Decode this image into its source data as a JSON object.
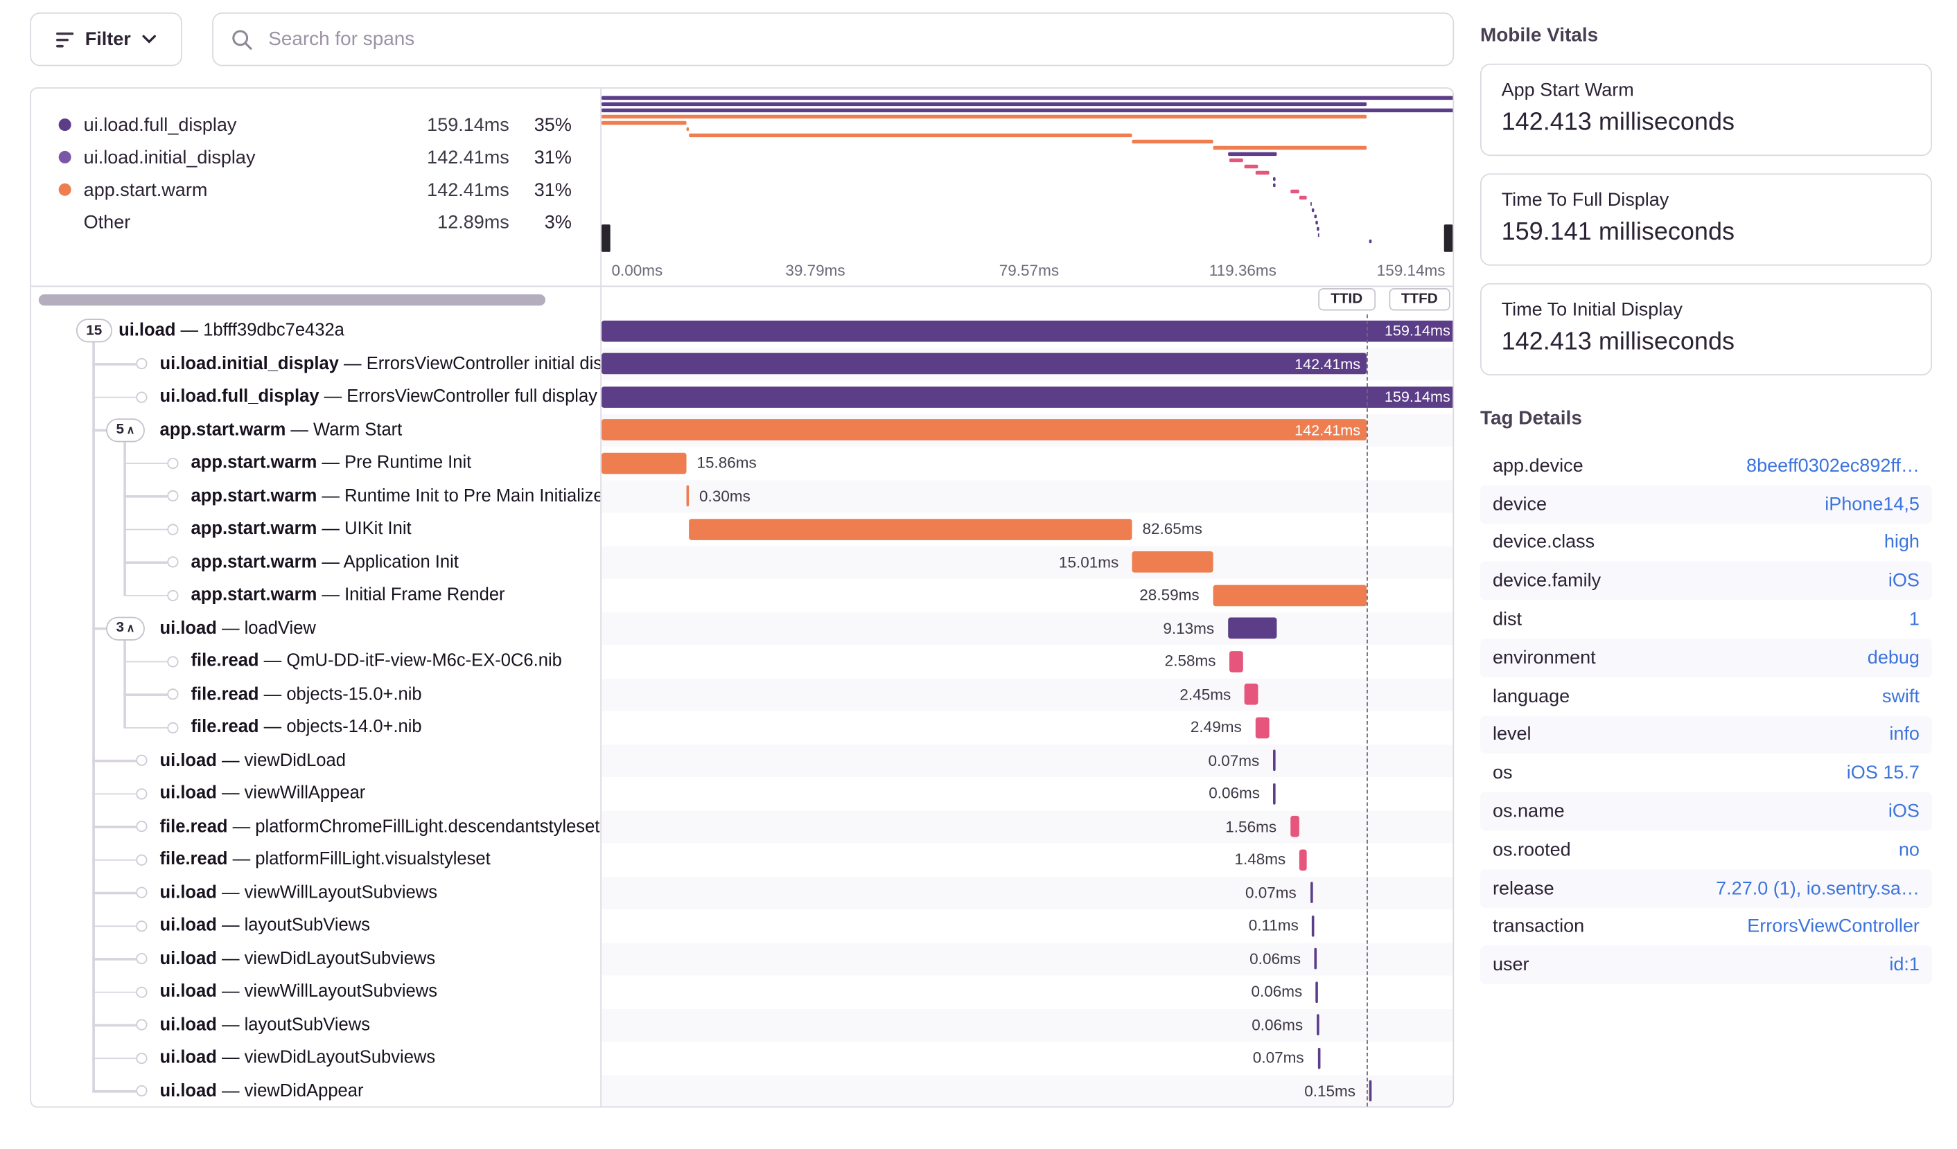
{
  "toolbar": {
    "filter_label": "Filter",
    "search_placeholder": "Search for spans"
  },
  "colors": {
    "purple": "#5b3d88",
    "purple_light": "#7a57a5",
    "orange": "#ee7d4f",
    "red": "#e5557c",
    "link": "#3c74dd"
  },
  "legend": {
    "items": [
      {
        "label": "ui.load.full_display",
        "duration": "159.14ms",
        "percent": "35%",
        "color": "purple"
      },
      {
        "label": "ui.load.initial_display",
        "duration": "142.41ms",
        "percent": "31%",
        "color": "purple_light"
      },
      {
        "label": "app.start.warm",
        "duration": "142.41ms",
        "percent": "31%",
        "color": "orange"
      },
      {
        "label": "Other",
        "duration": "12.89ms",
        "percent": "3%",
        "color": null
      }
    ]
  },
  "timeline": {
    "total_ms": 159.14,
    "ticks": [
      "0.00ms",
      "39.79ms",
      "79.57ms",
      "119.36ms",
      "159.14ms"
    ],
    "markers": [
      {
        "label": "TTID",
        "ms": 142.41
      },
      {
        "label": "TTFD",
        "ms": 159.14
      }
    ]
  },
  "spans": [
    {
      "op": "ui.load",
      "desc": "1bfff39dbc7e432a",
      "depth": 0,
      "badge": "15",
      "caret": false,
      "start": 0,
      "dur": 159.14,
      "color": "purple",
      "label": "159.14ms",
      "label_pos": "inside"
    },
    {
      "op": "ui.load.initial_display",
      "desc": "ErrorsViewController initial display",
      "depth": 1,
      "badge": null,
      "caret": false,
      "start": 0,
      "dur": 142.41,
      "color": "purple",
      "label": "142.41ms",
      "label_pos": "inside"
    },
    {
      "op": "ui.load.full_display",
      "desc": "ErrorsViewController full display",
      "depth": 1,
      "badge": null,
      "caret": false,
      "start": 0,
      "dur": 159.14,
      "color": "purple",
      "label": "159.14ms",
      "label_pos": "inside"
    },
    {
      "op": "app.start.warm",
      "desc": "Warm Start",
      "depth": 1,
      "badge": "5",
      "caret": true,
      "start": 0,
      "dur": 142.41,
      "color": "orange",
      "label": "142.41ms",
      "label_pos": "inside"
    },
    {
      "op": "app.start.warm",
      "desc": "Pre Runtime Init",
      "depth": 2,
      "badge": null,
      "caret": false,
      "start": 0,
      "dur": 15.86,
      "color": "orange",
      "label": "15.86ms",
      "label_pos": "right"
    },
    {
      "op": "app.start.warm",
      "desc": "Runtime Init to Pre Main Initializers",
      "depth": 2,
      "badge": null,
      "caret": false,
      "start": 15.86,
      "dur": 0.3,
      "color": "orange",
      "label": "0.30ms",
      "label_pos": "right"
    },
    {
      "op": "app.start.warm",
      "desc": "UIKit Init",
      "depth": 2,
      "badge": null,
      "caret": false,
      "start": 16.16,
      "dur": 82.65,
      "color": "orange",
      "label": "82.65ms",
      "label_pos": "right"
    },
    {
      "op": "app.start.warm",
      "desc": "Application Init",
      "depth": 2,
      "badge": null,
      "caret": false,
      "start": 98.81,
      "dur": 15.01,
      "color": "orange",
      "label": "15.01ms",
      "label_pos": "left"
    },
    {
      "op": "app.start.warm",
      "desc": "Initial Frame Render",
      "depth": 2,
      "badge": null,
      "caret": false,
      "start": 113.82,
      "dur": 28.59,
      "color": "orange",
      "label": "28.59ms",
      "label_pos": "left"
    },
    {
      "op": "ui.load",
      "desc": "loadView",
      "depth": 1,
      "badge": "3",
      "caret": true,
      "start": 116.6,
      "dur": 9.13,
      "color": "purple",
      "label": "9.13ms",
      "label_pos": "left"
    },
    {
      "op": "file.read",
      "desc": "QmU-DD-itF-view-M6c-EX-0C6.nib",
      "depth": 2,
      "badge": null,
      "caret": false,
      "start": 116.9,
      "dur": 2.58,
      "color": "red",
      "label": "2.58ms",
      "label_pos": "left"
    },
    {
      "op": "file.read",
      "desc": "objects-15.0+.nib",
      "depth": 2,
      "badge": null,
      "caret": false,
      "start": 119.7,
      "dur": 2.45,
      "color": "red",
      "label": "2.45ms",
      "label_pos": "left"
    },
    {
      "op": "file.read",
      "desc": "objects-14.0+.nib",
      "depth": 2,
      "badge": null,
      "caret": false,
      "start": 121.7,
      "dur": 2.49,
      "color": "red",
      "label": "2.49ms",
      "label_pos": "left"
    },
    {
      "op": "ui.load",
      "desc": "viewDidLoad",
      "depth": 1,
      "badge": null,
      "caret": false,
      "start": 125.0,
      "dur": 0.07,
      "color": "purple",
      "label": "0.07ms",
      "label_pos": "left"
    },
    {
      "op": "ui.load",
      "desc": "viewWillAppear",
      "depth": 1,
      "badge": null,
      "caret": false,
      "start": 125.1,
      "dur": 0.06,
      "color": "purple",
      "label": "0.06ms",
      "label_pos": "left"
    },
    {
      "op": "file.read",
      "desc": "platformChromeFillLight.descendantstyleset",
      "depth": 1,
      "badge": null,
      "caret": false,
      "start": 128.2,
      "dur": 1.56,
      "color": "red",
      "label": "1.56ms",
      "label_pos": "left"
    },
    {
      "op": "file.read",
      "desc": "platformFillLight.visualstyleset",
      "depth": 1,
      "badge": null,
      "caret": false,
      "start": 129.9,
      "dur": 1.48,
      "color": "red",
      "label": "1.48ms",
      "label_pos": "left"
    },
    {
      "op": "ui.load",
      "desc": "viewWillLayoutSubviews",
      "depth": 1,
      "badge": null,
      "caret": false,
      "start": 131.9,
      "dur": 0.07,
      "color": "purple",
      "label": "0.07ms",
      "label_pos": "left"
    },
    {
      "op": "ui.load",
      "desc": "layoutSubViews",
      "depth": 1,
      "badge": null,
      "caret": false,
      "start": 132.3,
      "dur": 0.11,
      "color": "purple",
      "label": "0.11ms",
      "label_pos": "left"
    },
    {
      "op": "ui.load",
      "desc": "viewDidLayoutSubviews",
      "depth": 1,
      "badge": null,
      "caret": false,
      "start": 132.7,
      "dur": 0.06,
      "color": "purple",
      "label": "0.06ms",
      "label_pos": "left"
    },
    {
      "op": "ui.load",
      "desc": "viewWillLayoutSubviews",
      "depth": 1,
      "badge": null,
      "caret": false,
      "start": 133.0,
      "dur": 0.06,
      "color": "purple",
      "label": "0.06ms",
      "label_pos": "left"
    },
    {
      "op": "ui.load",
      "desc": "layoutSubViews",
      "depth": 1,
      "badge": null,
      "caret": false,
      "start": 133.1,
      "dur": 0.06,
      "color": "purple",
      "label": "0.06ms",
      "label_pos": "left"
    },
    {
      "op": "ui.load",
      "desc": "viewDidLayoutSubviews",
      "depth": 1,
      "badge": null,
      "caret": false,
      "start": 133.3,
      "dur": 0.07,
      "color": "purple",
      "label": "0.07ms",
      "label_pos": "left"
    },
    {
      "op": "ui.load",
      "desc": "viewDidAppear",
      "depth": 1,
      "badge": null,
      "caret": false,
      "start": 142.9,
      "dur": 0.15,
      "color": "purple",
      "label": "0.15ms",
      "label_pos": "left"
    }
  ],
  "vitals": {
    "title": "Mobile Vitals",
    "cards": [
      {
        "label": "App Start Warm",
        "value": "142.413 milliseconds"
      },
      {
        "label": "Time To Full Display",
        "value": "159.141 milliseconds"
      },
      {
        "label": "Time To Initial Display",
        "value": "142.413 milliseconds"
      }
    ]
  },
  "tags": {
    "title": "Tag Details",
    "rows": [
      {
        "key": "app.device",
        "value": "8beeff0302ec892ff…"
      },
      {
        "key": "device",
        "value": "iPhone14,5"
      },
      {
        "key": "device.class",
        "value": "high"
      },
      {
        "key": "device.family",
        "value": "iOS"
      },
      {
        "key": "dist",
        "value": "1"
      },
      {
        "key": "environment",
        "value": "debug"
      },
      {
        "key": "language",
        "value": "swift"
      },
      {
        "key": "level",
        "value": "info"
      },
      {
        "key": "os",
        "value": "iOS 15.7"
      },
      {
        "key": "os.name",
        "value": "iOS"
      },
      {
        "key": "os.rooted",
        "value": "no"
      },
      {
        "key": "release",
        "value": "7.27.0 (1), io.sentry.sa…"
      },
      {
        "key": "transaction",
        "value": "ErrorsViewController"
      },
      {
        "key": "user",
        "value": "id:1"
      }
    ]
  }
}
